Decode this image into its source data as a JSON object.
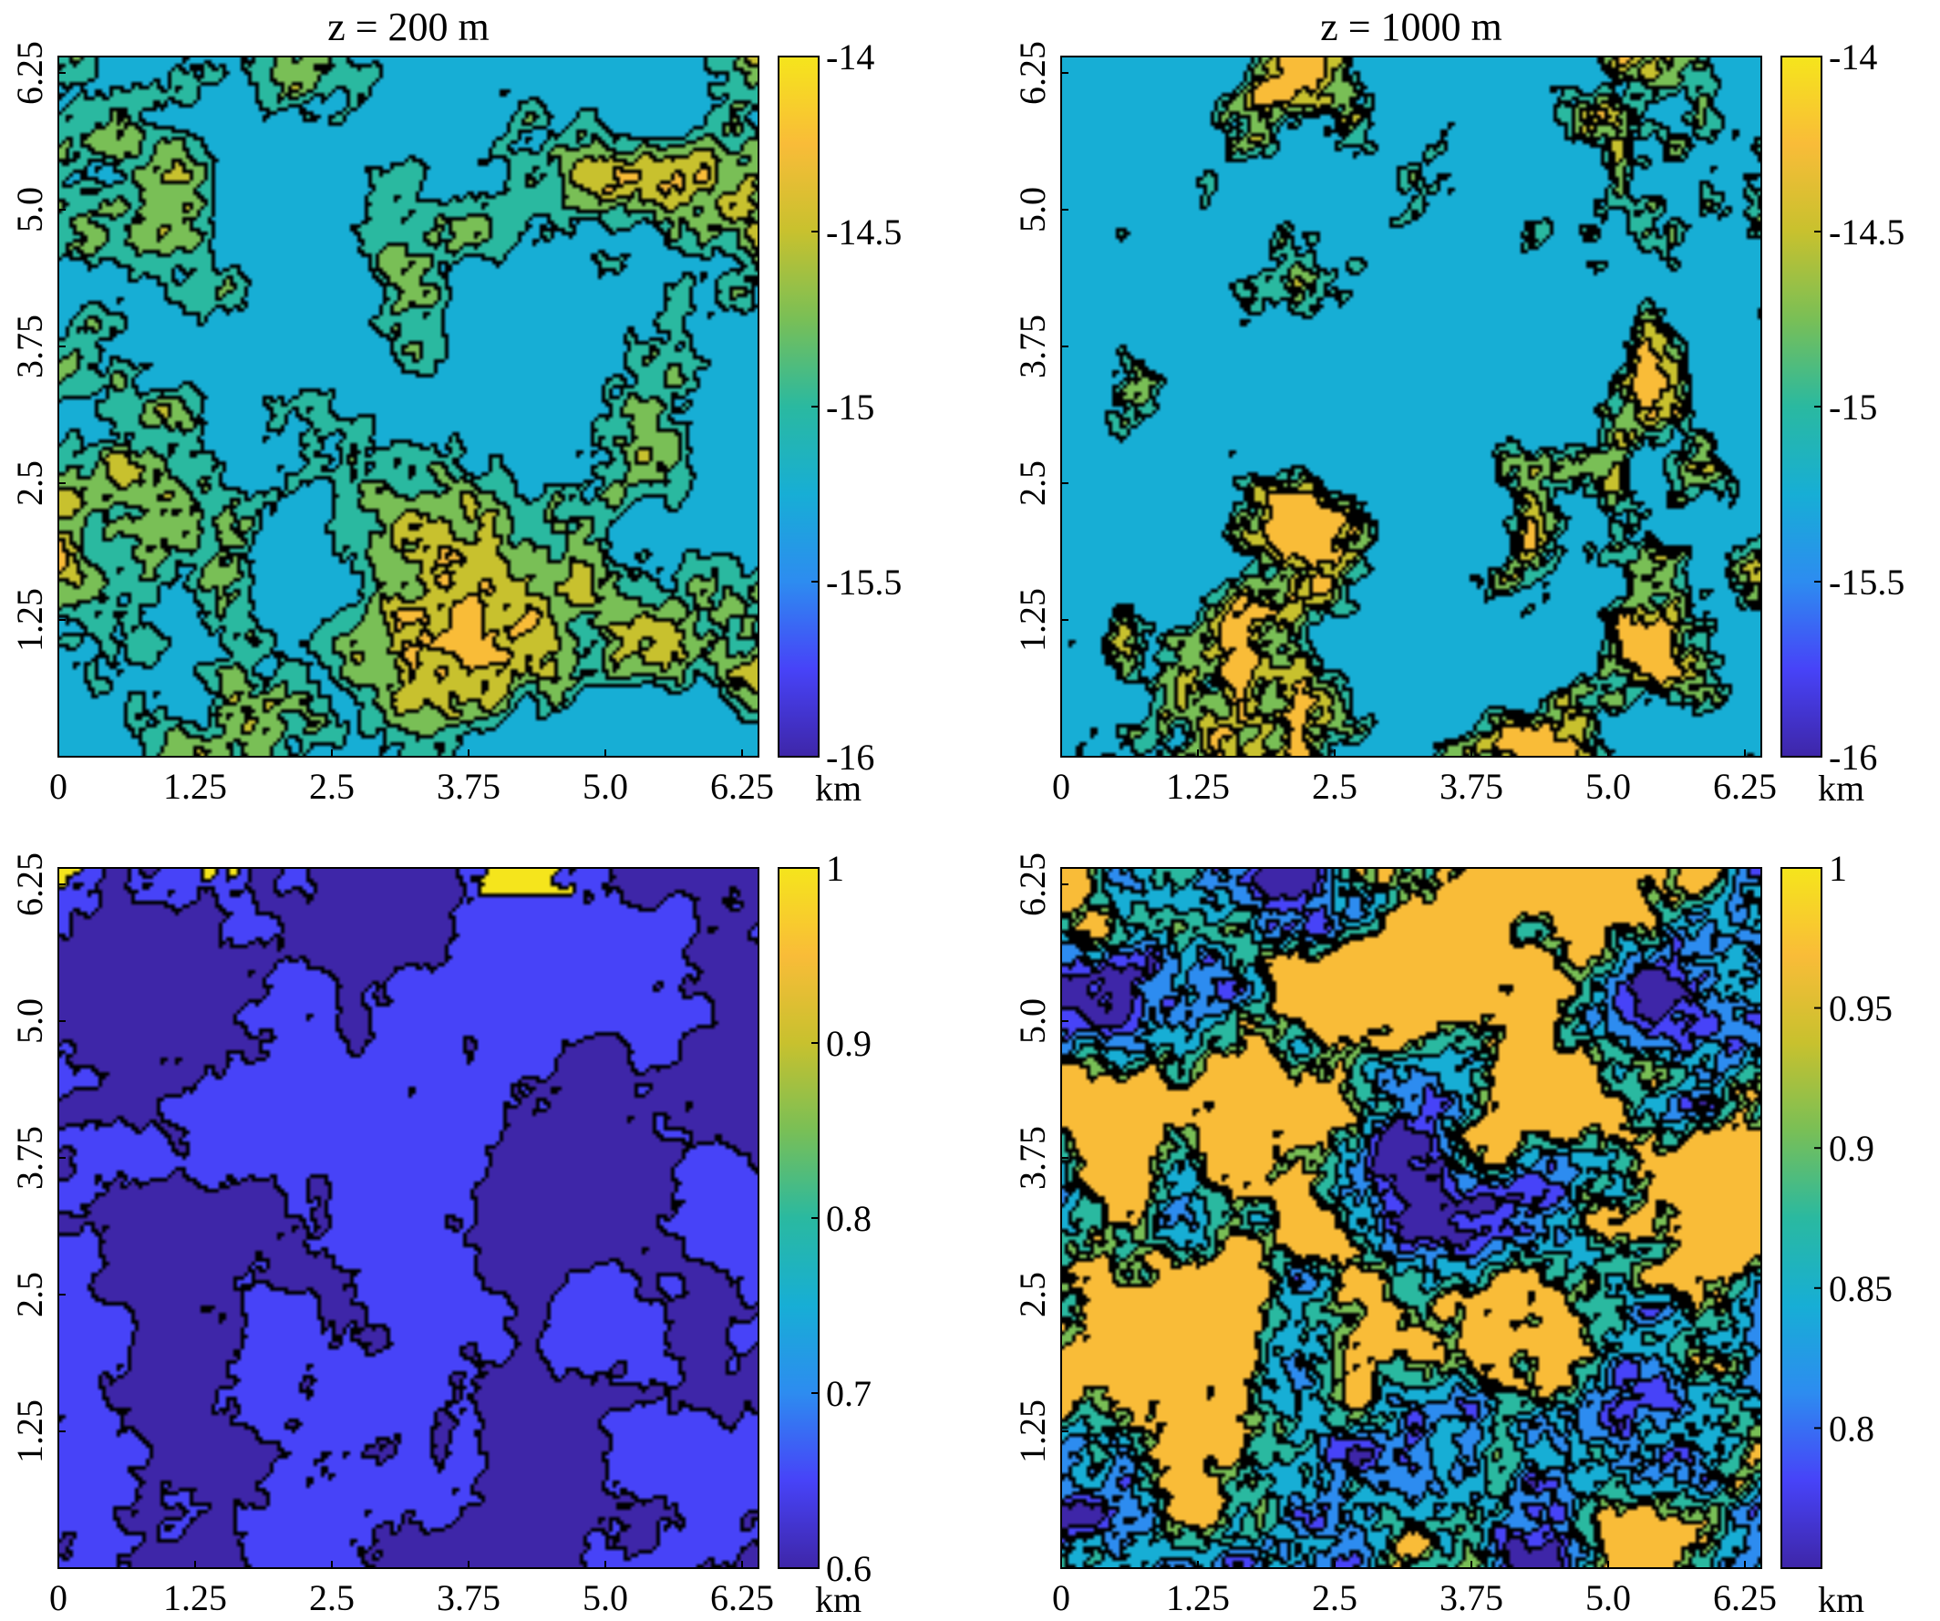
{
  "colors": {
    "parula": [
      "#3e26a8",
      "#4743f8",
      "#2d8cf0",
      "#17aed5",
      "#2ab9a0",
      "#79bf56",
      "#c8c12e",
      "#f9bc38",
      "#f5e51c"
    ],
    "contour_line": "#000000"
  },
  "panels": [
    {
      "id": "top-left",
      "title": "z = 200 m",
      "quantity_label": "",
      "xlabel_unit": "km",
      "xticks": [
        "0",
        "1.25",
        "2.5",
        "3.75",
        "5.0",
        "6.25"
      ],
      "yticks": [
        "1.25",
        "2.5",
        "3.75",
        "5.0",
        "6.25"
      ],
      "colorbar": {
        "min": -16,
        "max": -14,
        "ticks": [
          "-14",
          "-14.5",
          "-15",
          "-15.5",
          "-16"
        ],
        "tick_values": [
          -14,
          -14.5,
          -15,
          -15.5,
          -16
        ]
      },
      "base_level": 0.7,
      "seed": 11
    },
    {
      "id": "top-right",
      "title": "z = 1000 m",
      "quantity_label": "",
      "xlabel_unit": "km",
      "xticks": [
        "0",
        "1.25",
        "2.5",
        "3.75",
        "5.0",
        "6.25"
      ],
      "yticks": [
        "1.25",
        "2.5",
        "3.75",
        "5.0",
        "6.25"
      ],
      "colorbar": {
        "min": -16,
        "max": -14,
        "ticks": [
          "-14",
          "-14.5",
          "-15",
          "-15.5",
          "-16"
        ],
        "tick_values": [
          -14,
          -14.5,
          -15,
          -15.5,
          -16
        ]
      },
      "base_level": 0.4,
      "seed": 29
    },
    {
      "id": "bottom-left",
      "title": "",
      "quantity_label": "",
      "xlabel_unit": "km",
      "xticks": [
        "0",
        "1.25",
        "2.5",
        "3.75",
        "5.0",
        "6.25"
      ],
      "yticks": [
        "1.25",
        "2.5",
        "3.75",
        "5.0",
        "6.25"
      ],
      "colorbar": {
        "min": 0.6,
        "max": 1.0,
        "ticks": [
          "1",
          "0.9",
          "0.8",
          "0.7",
          "0.6"
        ],
        "tick_values": [
          1.0,
          0.9,
          0.8,
          0.7,
          0.6
        ]
      },
      "base_level": 0.12,
      "seed": 47
    },
    {
      "id": "bottom-right",
      "title": "",
      "quantity_label": "",
      "xlabel_unit": "km",
      "xticks": [
        "0",
        "1.25",
        "2.5",
        "3.75",
        "5.0",
        "6.25"
      ],
      "yticks": [
        "1.25",
        "2.5",
        "3.75",
        "5.0",
        "6.25"
      ],
      "colorbar": {
        "min": 0.75,
        "max": 1.0,
        "ticks": [
          "1",
          "0.95",
          "0.9",
          "0.85",
          "0.8"
        ],
        "tick_values": [
          1.0,
          0.95,
          0.9,
          0.85,
          0.8
        ]
      },
      "base_level": 0.5,
      "seed": 83
    }
  ],
  "chart_data": [
    {
      "type": "heatmap",
      "title": "z = 200 m",
      "xlabel": "km",
      "ylabel": "",
      "x_range_km": [
        0,
        6.4
      ],
      "y_range_km": [
        0,
        6.4
      ],
      "xticks": [
        0,
        1.25,
        2.5,
        3.75,
        5.0,
        6.25
      ],
      "yticks": [
        1.25,
        2.5,
        3.75,
        5.0,
        6.25
      ],
      "colorbar_range": [
        -16,
        -14
      ],
      "colorbar_ticks": [
        -14,
        -14.5,
        -15,
        -15.5,
        -16
      ],
      "colormap": "parula",
      "style": "filled contours with black contour lines"
    },
    {
      "type": "heatmap",
      "title": "z = 1000 m",
      "xlabel": "km",
      "ylabel": "",
      "x_range_km": [
        0,
        6.4
      ],
      "y_range_km": [
        0,
        6.4
      ],
      "xticks": [
        0,
        1.25,
        2.5,
        3.75,
        5.0,
        6.25
      ],
      "yticks": [
        1.25,
        2.5,
        3.75,
        5.0,
        6.25
      ],
      "colorbar_range": [
        -16,
        -14
      ],
      "colorbar_ticks": [
        -14,
        -14.5,
        -15,
        -15.5,
        -16
      ],
      "colormap": "parula",
      "style": "filled contours with black contour lines"
    },
    {
      "type": "heatmap",
      "title": "",
      "xlabel": "km",
      "ylabel": "",
      "x_range_km": [
        0,
        6.4
      ],
      "y_range_km": [
        0,
        6.4
      ],
      "xticks": [
        0,
        1.25,
        2.5,
        3.75,
        5.0,
        6.25
      ],
      "yticks": [
        1.25,
        2.5,
        3.75,
        5.0,
        6.25
      ],
      "colorbar_range": [
        0.6,
        1.0
      ],
      "colorbar_ticks": [
        1,
        0.9,
        0.8,
        0.7,
        0.6
      ],
      "colormap": "parula",
      "style": "filled contours with black contour lines"
    },
    {
      "type": "heatmap",
      "title": "",
      "xlabel": "km",
      "ylabel": "",
      "x_range_km": [
        0,
        6.4
      ],
      "y_range_km": [
        0,
        6.4
      ],
      "xticks": [
        0,
        1.25,
        2.5,
        3.75,
        5.0,
        6.25
      ],
      "yticks": [
        1.25,
        2.5,
        3.75,
        5.0,
        6.25
      ],
      "colorbar_range": [
        0.75,
        1.0
      ],
      "colorbar_ticks": [
        1,
        0.95,
        0.9,
        0.85,
        0.8
      ],
      "colormap": "parula",
      "style": "filled contours with black contour lines"
    }
  ]
}
